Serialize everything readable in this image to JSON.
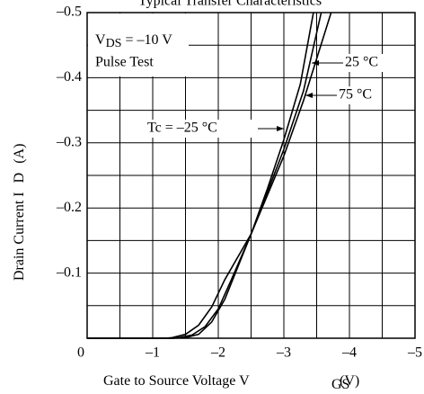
{
  "chart_data": {
    "type": "line",
    "title": "Typical Transfer Characteristics",
    "x_label": "Gate to Source Voltage   V",
    "x_label_sub": "GS",
    "x_label_unit": "(V)",
    "y_label": "Drain Current   I",
    "y_label_sub": "D",
    "y_label_unit": "(A)",
    "condition_main": "V",
    "condition_sub": "DS",
    "condition_rest": " = –10 V",
    "condition_note": "Pulse Test",
    "xlim": [
      0,
      -5
    ],
    "ylim": [
      0,
      -0.5
    ],
    "xticks": [
      0,
      {
        "value": -1,
        "label": "–1"
      },
      {
        "value": -2,
        "label": "–2"
      },
      {
        "value": -3,
        "label": "–3"
      },
      {
        "value": -4,
        "label": "–4"
      },
      {
        "value": -5,
        "label": "–5"
      }
    ],
    "yticks": [
      {
        "value": -0.1,
        "label": "–0.1"
      },
      {
        "value": -0.2,
        "label": "–0.2"
      },
      {
        "value": -0.3,
        "label": "–0.3"
      },
      {
        "value": -0.4,
        "label": "–0.4"
      },
      {
        "value": -0.5,
        "label": "–0.5"
      }
    ],
    "minor_xticks": [
      -0.5,
      -1.5,
      -2.5,
      -3.5,
      -4.5
    ],
    "minor_yticks": [
      -0.05,
      -0.15,
      -0.25,
      -0.35,
      -0.45
    ],
    "grid": true,
    "series": [
      {
        "name": "Tc = –25 °C",
        "color": "#000000",
        "x": [
          0,
          -1.3,
          -1.5,
          -1.7,
          -1.9,
          -2.1,
          -2.3,
          -2.5,
          -2.75,
          -3,
          -3.25,
          -3.45
        ],
        "values": [
          0,
          0,
          -0.001,
          -0.006,
          -0.025,
          -0.06,
          -0.11,
          -0.16,
          -0.23,
          -0.305,
          -0.39,
          -0.5
        ]
      },
      {
        "name": "25 °C",
        "color": "#000000",
        "x": [
          0,
          -1.3,
          -1.4,
          -1.6,
          -1.8,
          -2,
          -2.2,
          -2.5,
          -2.75,
          -3,
          -3.3,
          -3.57
        ],
        "values": [
          0,
          0,
          -0.001,
          -0.005,
          -0.018,
          -0.045,
          -0.09,
          -0.16,
          -0.225,
          -0.29,
          -0.38,
          -0.5
        ]
      },
      {
        "name": "75 °C",
        "color": "#000000",
        "x": [
          0,
          -1.2,
          -1.3,
          -1.5,
          -1.7,
          -1.9,
          -2.1,
          -2.5,
          -2.75,
          -3,
          -3.3,
          -3.72
        ],
        "values": [
          0,
          0,
          -0.001,
          -0.006,
          -0.02,
          -0.048,
          -0.09,
          -0.16,
          -0.22,
          -0.28,
          -0.365,
          -0.5
        ]
      }
    ]
  }
}
